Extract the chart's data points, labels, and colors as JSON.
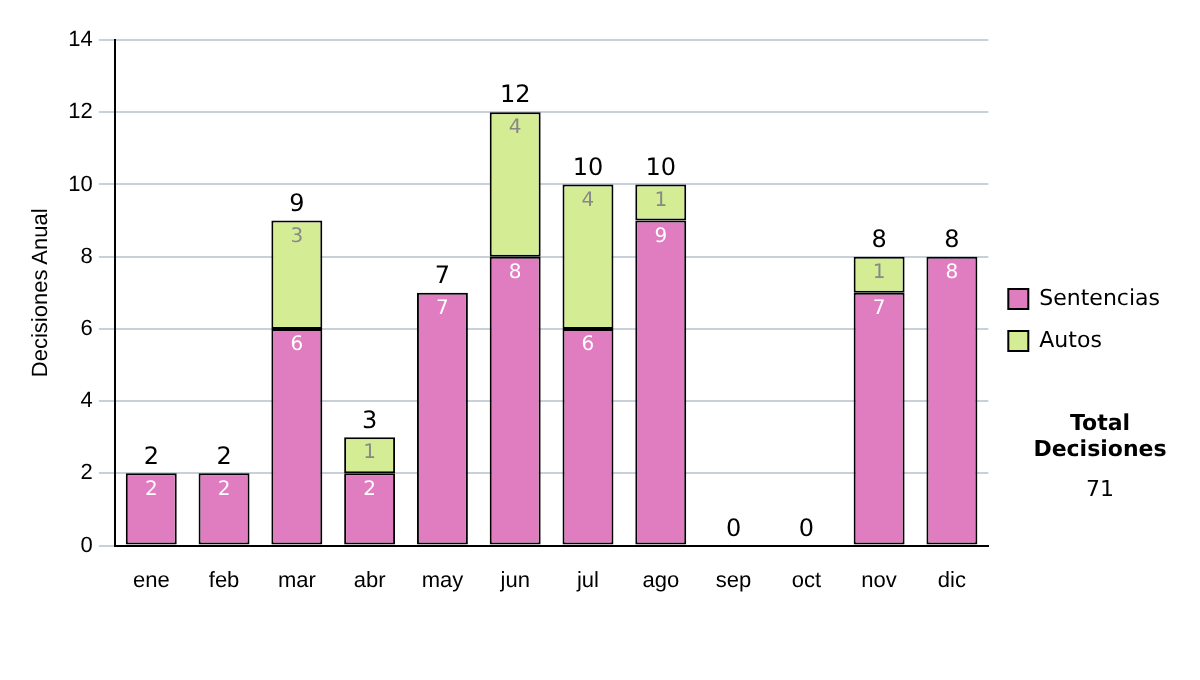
{
  "chart_data": {
    "type": "bar",
    "stacked": true,
    "ylabel": "Decisiones Anual",
    "categories": [
      "ene",
      "feb",
      "mar",
      "abr",
      "may",
      "jun",
      "jul",
      "ago",
      "sep",
      "oct",
      "nov",
      "dic"
    ],
    "series": [
      {
        "name": "Sentencias",
        "color": "#e07cc0",
        "values": [
          2,
          2,
          6,
          2,
          7,
          8,
          6,
          9,
          0,
          0,
          7,
          8
        ],
        "value_labels": [
          "2",
          "2",
          "6",
          "2",
          "7",
          "8",
          "6",
          "9",
          null,
          null,
          "7",
          "8"
        ]
      },
      {
        "name": "Autos",
        "color": "#d4ec94",
        "values": [
          0,
          0,
          3,
          1,
          0,
          4,
          4,
          1,
          0,
          0,
          1,
          0
        ],
        "value_labels": [
          null,
          null,
          "3",
          "1",
          null,
          "4",
          "4",
          "1",
          null,
          null,
          "1",
          null
        ]
      }
    ],
    "totals": [
      "2",
      "2",
      "9",
      "3",
      "7",
      "12",
      "10",
      "10",
      "0",
      "0",
      "8",
      "8"
    ],
    "ylim": [
      0,
      14
    ],
    "yticks": [
      0,
      2,
      4,
      6,
      8,
      10,
      12,
      14
    ],
    "grid": "y",
    "legend": "right",
    "annotations": [
      "Total Decisiones",
      "71"
    ]
  }
}
